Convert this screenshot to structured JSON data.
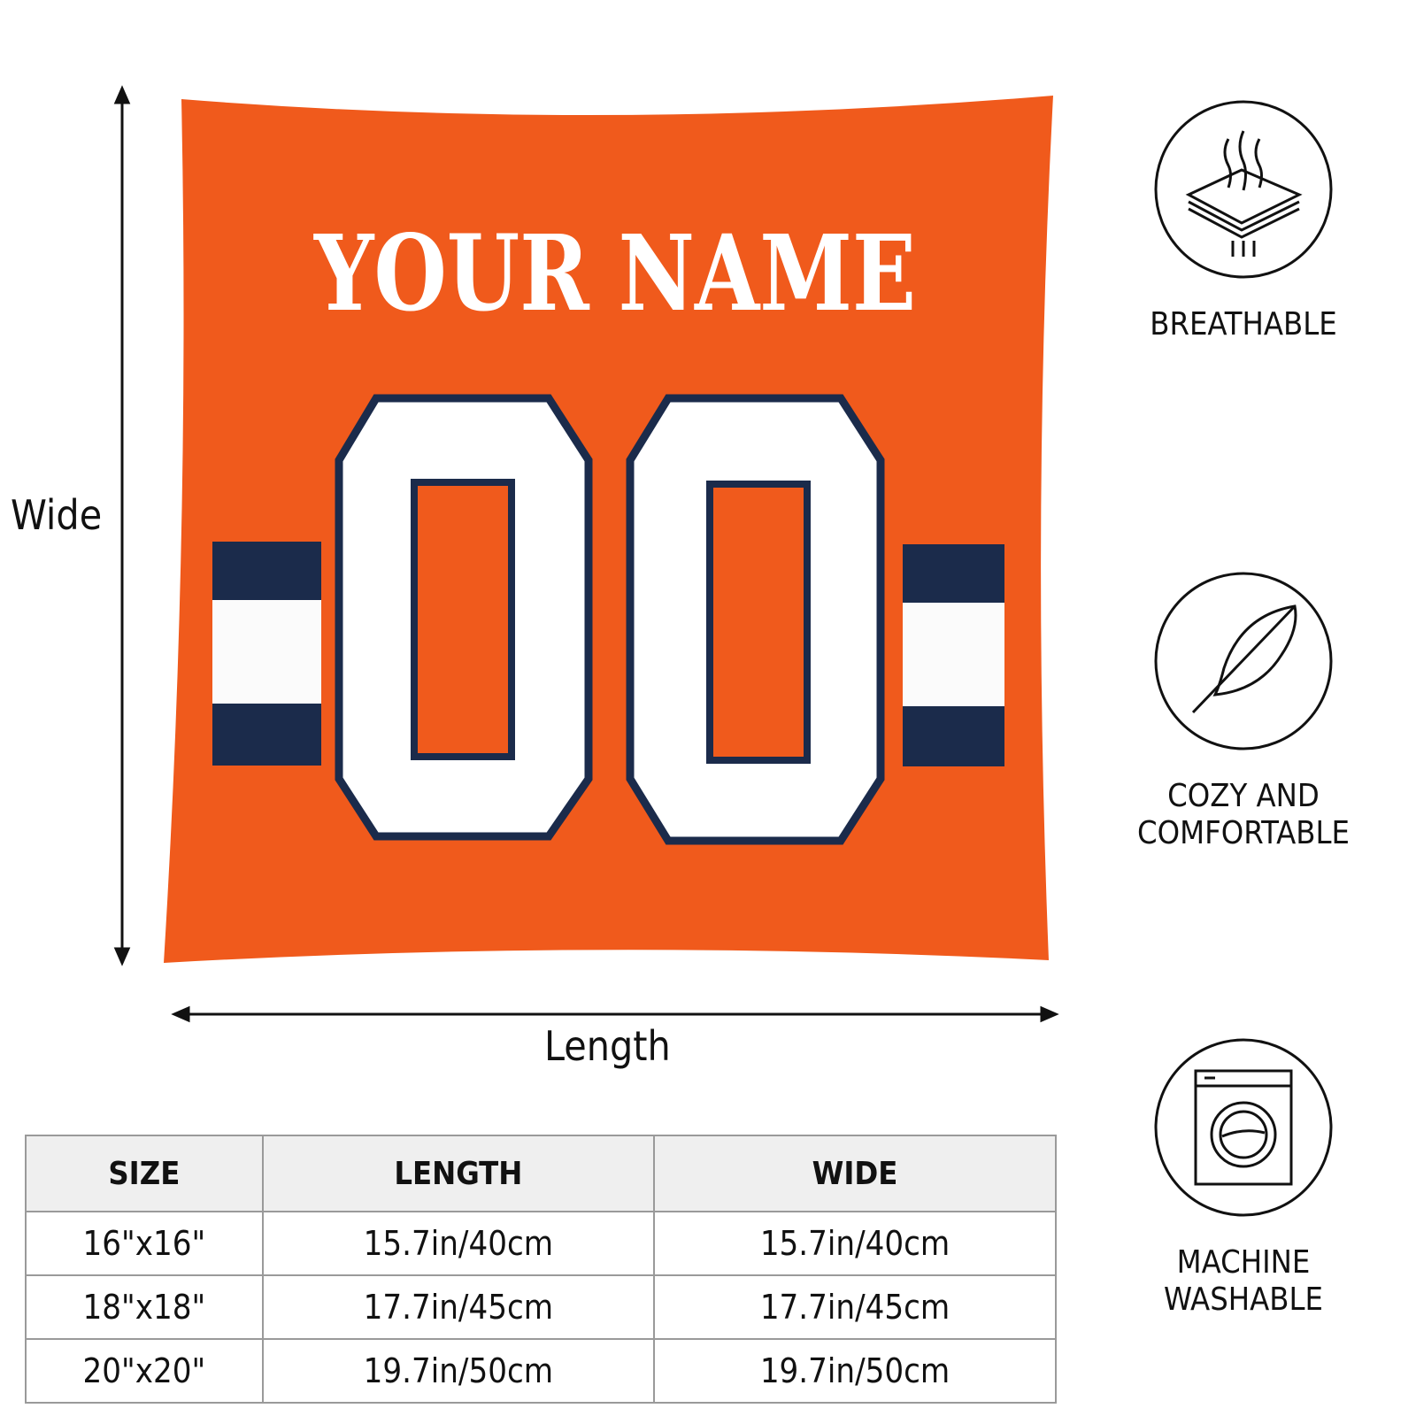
{
  "pillow": {
    "name_text": "YOUR NAME",
    "number_text": "00",
    "colors": {
      "body": "#f05a1c",
      "navy": "#1b2b4b",
      "white": "#ffffff"
    }
  },
  "dimensions": {
    "vertical_label": "Wide",
    "horizontal_label": "Length"
  },
  "features": [
    {
      "icon": "breathable-layers-icon",
      "label_lines": [
        "BREATHABLE"
      ]
    },
    {
      "icon": "feather-icon",
      "label_lines": [
        "COZY AND",
        "COMFORTABLE"
      ]
    },
    {
      "icon": "washing-machine-icon",
      "label_lines": [
        "MACHINE",
        "WASHABLE"
      ]
    }
  ],
  "size_table": {
    "headers": [
      "SIZE",
      "LENGTH",
      "WIDE"
    ],
    "rows": [
      [
        "16\"x16\"",
        "15.7in/40cm",
        "15.7in/40cm"
      ],
      [
        "18\"x18\"",
        "17.7in/45cm",
        "17.7in/45cm"
      ],
      [
        "20\"x20\"",
        "19.7in/50cm",
        "19.7in/50cm"
      ]
    ]
  }
}
